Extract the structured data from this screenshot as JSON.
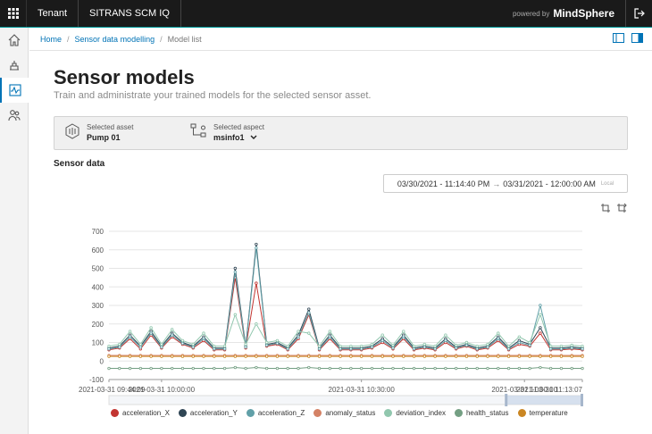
{
  "topbar": {
    "tenant": "Tenant",
    "app": "SITRANS SCM IQ",
    "powered": "powered by",
    "brand": "MindSphere"
  },
  "breadcrumb": [
    "Home",
    "Sensor data modelling",
    "Model list"
  ],
  "page": {
    "title": "Sensor models",
    "subtitle": "Train and administrate your trained models for the selected sensor asset."
  },
  "asset": {
    "asset_label": "Selected asset",
    "asset_value": "Pump 01",
    "aspect_label": "Selected aspect",
    "aspect_value": "msinfo1"
  },
  "section": {
    "sensor_data": "Sensor data"
  },
  "daterange": {
    "from": "03/30/2021 - 11:14:40 PM",
    "to": "03/31/2021 - 12:00:00 AM",
    "tz": "Local"
  },
  "colors": {
    "accent": "#009999",
    "link": "#0073b6"
  },
  "chart_data": {
    "type": "line",
    "xlabel": "",
    "ylabel": "",
    "ylim": [
      -100,
      700
    ],
    "yticks": [
      -100,
      0,
      100,
      200,
      300,
      400,
      500,
      600,
      700
    ],
    "xtick_labels": [
      "2021-03-31 09:44:09",
      "2021-03-31 10:00:00",
      "2021-03-31 10:30:00",
      "2021-03-31 11:00:00",
      "2021-03-31 11:13:07"
    ],
    "x": [
      0,
      2,
      4,
      6,
      8,
      10,
      12,
      14,
      16,
      18,
      20,
      22,
      24,
      26,
      28,
      30,
      32,
      34,
      36,
      38,
      40,
      42,
      44,
      46,
      48,
      50,
      52,
      54,
      56,
      58,
      60,
      62,
      64,
      66,
      68,
      70,
      72,
      74,
      76,
      78,
      80,
      82,
      84,
      86,
      88,
      90
    ],
    "series": [
      {
        "name": "acceleration_X",
        "color": "#c23531",
        "values": [
          60,
          70,
          120,
          65,
          140,
          70,
          130,
          90,
          70,
          110,
          60,
          60,
          450,
          70,
          420,
          80,
          90,
          60,
          120,
          250,
          60,
          120,
          60,
          60,
          60,
          70,
          100,
          65,
          120,
          60,
          70,
          60,
          100,
          65,
          80,
          60,
          70,
          110,
          60,
          90,
          80,
          150,
          60,
          60,
          65,
          60
        ]
      },
      {
        "name": "acceleration_Y",
        "color": "#2f4554",
        "values": [
          70,
          80,
          140,
          80,
          160,
          80,
          150,
          100,
          80,
          130,
          70,
          70,
          500,
          80,
          630,
          90,
          100,
          70,
          140,
          280,
          70,
          140,
          70,
          70,
          70,
          80,
          120,
          75,
          140,
          70,
          80,
          70,
          120,
          75,
          90,
          70,
          80,
          130,
          70,
          110,
          90,
          180,
          70,
          70,
          75,
          70
        ]
      },
      {
        "name": "acceleration_Z",
        "color": "#61a0a8",
        "values": [
          65,
          75,
          130,
          75,
          150,
          75,
          140,
          95,
          75,
          120,
          65,
          65,
          480,
          75,
          610,
          85,
          95,
          65,
          130,
          260,
          65,
          130,
          65,
          65,
          65,
          75,
          110,
          70,
          130,
          65,
          75,
          65,
          110,
          70,
          85,
          65,
          75,
          120,
          65,
          100,
          85,
          300,
          65,
          65,
          70,
          65
        ]
      },
      {
        "name": "anomaly_status",
        "color": "#d48265",
        "values": [
          30,
          30,
          30,
          30,
          30,
          30,
          30,
          30,
          30,
          30,
          30,
          30,
          30,
          30,
          30,
          30,
          30,
          30,
          30,
          30,
          30,
          30,
          30,
          30,
          30,
          30,
          30,
          30,
          30,
          30,
          30,
          30,
          30,
          30,
          30,
          30,
          30,
          30,
          30,
          30,
          30,
          30,
          30,
          30,
          30,
          30
        ]
      },
      {
        "name": "deviation_index",
        "color": "#91c7ae",
        "values": [
          80,
          90,
          160,
          90,
          180,
          90,
          170,
          110,
          90,
          150,
          80,
          80,
          250,
          90,
          200,
          100,
          110,
          80,
          160,
          150,
          80,
          160,
          80,
          80,
          80,
          90,
          140,
          85,
          160,
          80,
          90,
          80,
          140,
          85,
          100,
          80,
          90,
          150,
          80,
          130,
          100,
          250,
          80,
          80,
          85,
          80
        ]
      },
      {
        "name": "health_status",
        "color": "#749f83",
        "values": [
          -40,
          -40,
          -40,
          -40,
          -40,
          -40,
          -40,
          -40,
          -40,
          -40,
          -40,
          -40,
          -35,
          -40,
          -35,
          -40,
          -40,
          -40,
          -40,
          -35,
          -40,
          -40,
          -40,
          -40,
          -40,
          -40,
          -40,
          -40,
          -40,
          -40,
          -40,
          -40,
          -40,
          -40,
          -40,
          -40,
          -40,
          -40,
          -40,
          -40,
          -40,
          -35,
          -40,
          -40,
          -40,
          -40
        ]
      },
      {
        "name": "temperature",
        "color": "#ca8622",
        "values": [
          25,
          25,
          25,
          25,
          25,
          25,
          25,
          25,
          25,
          25,
          25,
          25,
          25,
          25,
          25,
          25,
          25,
          25,
          25,
          25,
          25,
          25,
          25,
          25,
          25,
          25,
          25,
          25,
          25,
          25,
          25,
          25,
          25,
          25,
          25,
          25,
          25,
          25,
          25,
          25,
          25,
          25,
          25,
          25,
          25,
          25
        ]
      }
    ]
  }
}
